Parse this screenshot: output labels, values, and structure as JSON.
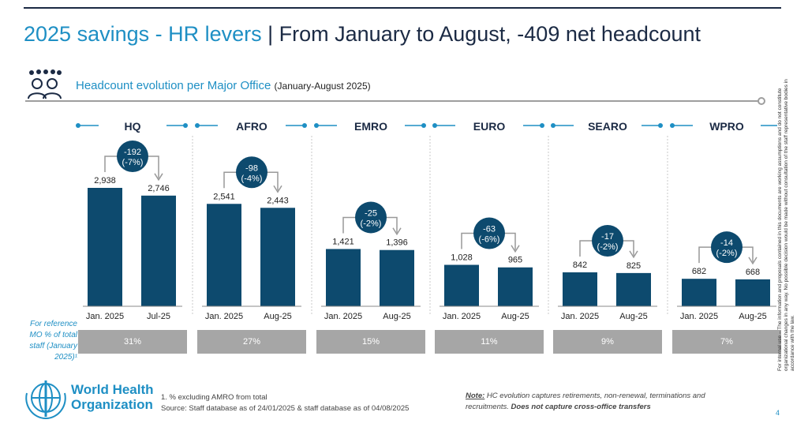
{
  "page": {
    "title_accent": "2025 savings - HR levers",
    "title_rest": " | From January to August, -409 net headcount",
    "subtitle": "Headcount evolution per Major Office",
    "subtitle_period": "(January-August 2025)",
    "page_number": "4",
    "disclaimer": "For internal use – The information and proposals contained in this documents are working assumptions and do not constitute organizational changes in any way. No possible decision would be made without consultation of the staff representative bodies in accordance with the law.",
    "footnote_line1": "1. % excluding AMRO from total",
    "footnote_line2": "Source: Staff database as of 24/01/2025 & staff database as of 04/08/2025",
    "note_label": "Note:",
    "note_text": " HC evolution captures retirements, non-renewal, terminations and recruitments. ",
    "note_bold": "Does not capture cross-office transfers",
    "logo_line1": "World Health",
    "logo_line2": "Organization",
    "reference_label": "For reference MO % of total staff (January 2025)¹",
    "colors": {
      "bar": "#0d4a6e",
      "accent": "#1e8fc4",
      "ref_box": "#a6a6a6",
      "bubble": "#0d4a6e"
    }
  },
  "chart_data": {
    "type": "bar",
    "title": "Headcount evolution per Major Office",
    "ylim": [
      0,
      3200
    ],
    "groups": [
      {
        "office": "HQ",
        "categories": [
          "Jan. 2025",
          "Jul-25"
        ],
        "values": [
          2938,
          2746
        ],
        "value_labels": [
          "2,938",
          "2,746"
        ],
        "delta": "-192",
        "delta_pct": "(-7%)",
        "share": "31%"
      },
      {
        "office": "AFRO",
        "categories": [
          "Jan. 2025",
          "Aug-25"
        ],
        "values": [
          2541,
          2443
        ],
        "value_labels": [
          "2,541",
          "2,443"
        ],
        "delta": "-98",
        "delta_pct": "(-4%)",
        "share": "27%"
      },
      {
        "office": "EMRO",
        "categories": [
          "Jan. 2025",
          "Aug-25"
        ],
        "values": [
          1421,
          1396
        ],
        "value_labels": [
          "1,421",
          "1,396"
        ],
        "delta": "-25",
        "delta_pct": "(-2%)",
        "share": "15%"
      },
      {
        "office": "EURO",
        "categories": [
          "Jan. 2025",
          "Aug-25"
        ],
        "values": [
          1028,
          965
        ],
        "value_labels": [
          "1,028",
          "965"
        ],
        "delta": "-63",
        "delta_pct": "(-6%)",
        "share": "11%"
      },
      {
        "office": "SEARO",
        "categories": [
          "Jan. 2025",
          "Aug-25"
        ],
        "values": [
          842,
          825
        ],
        "value_labels": [
          "842",
          "825"
        ],
        "delta": "-17",
        "delta_pct": "(-2%)",
        "share": "9%"
      },
      {
        "office": "WPRO",
        "categories": [
          "Jan. 2025",
          "Aug-25"
        ],
        "values": [
          682,
          668
        ],
        "value_labels": [
          "682",
          "668"
        ],
        "delta": "-14",
        "delta_pct": "(-2%)",
        "share": "7%"
      }
    ]
  }
}
